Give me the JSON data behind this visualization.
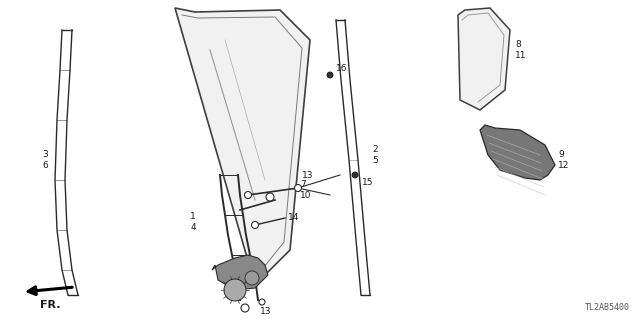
{
  "part_code": "TL2AB5400",
  "background_color": "#ffffff",
  "line_color": "#2a2a2a",
  "label_color": "#1a1a1a",
  "font_size": 6.5
}
